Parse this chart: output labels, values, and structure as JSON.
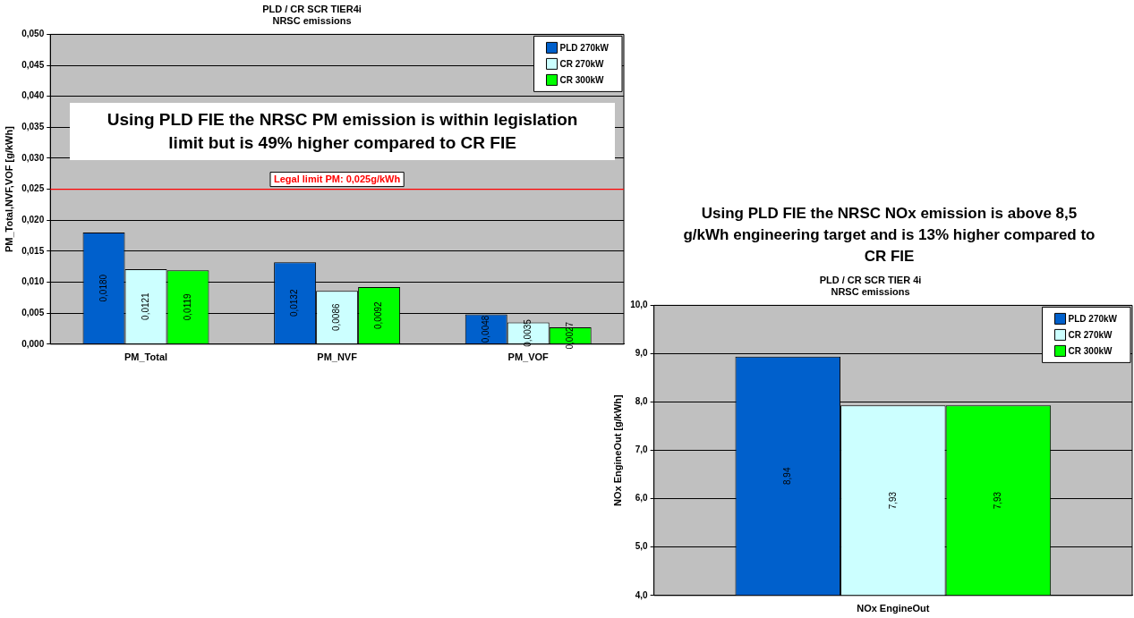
{
  "chart_data": [
    {
      "type": "bar",
      "title": "PLD / CR SCR TIER4i\nNRSC emissions",
      "ylabel": "PM_Total,NVF,VOF [g/kWh]",
      "categories": [
        "PM_Total",
        "PM_NVF",
        "PM_VOF"
      ],
      "series": [
        {
          "name": "PLD 270kW",
          "color": "#0060cc",
          "values": [
            0.018,
            0.0132,
            0.0048
          ],
          "value_labels": [
            "0,0180",
            "0,0132",
            "0,0048"
          ]
        },
        {
          "name": "CR 270kW",
          "color": "#ccffff",
          "values": [
            0.0121,
            0.0086,
            0.0035
          ],
          "value_labels": [
            "0,0121",
            "0,0086",
            "0,0035"
          ]
        },
        {
          "name": "CR 300kW",
          "color": "#00ff00",
          "values": [
            0.0119,
            0.0092,
            0.0027
          ],
          "value_labels": [
            "0,0119",
            "0,0092",
            "0,0027"
          ]
        }
      ],
      "ylim": [
        0,
        0.05
      ],
      "yticks": [
        {
          "value": 0,
          "label": "0,000"
        },
        {
          "value": 0.005,
          "label": "0,005"
        },
        {
          "value": 0.01,
          "label": "0,010"
        },
        {
          "value": 0.015,
          "label": "0,015"
        },
        {
          "value": 0.02,
          "label": "0,020"
        },
        {
          "value": 0.025,
          "label": "0,025"
        },
        {
          "value": 0.03,
          "label": "0,030"
        },
        {
          "value": 0.035,
          "label": "0,035"
        },
        {
          "value": 0.04,
          "label": "0,040"
        },
        {
          "value": 0.045,
          "label": "0,045"
        },
        {
          "value": 0.05,
          "label": "0,050"
        }
      ],
      "grid": "y",
      "legend": "top right",
      "ref_lines": [
        {
          "axis": "y",
          "value": 0.025,
          "label": "Legal limit PM: 0,025g/kWh",
          "color": "#ff0000"
        }
      ],
      "annotations": [
        "Using PLD FIE the NRSC PM emission is within legislation limit but is 49% higher compared to CR FIE"
      ]
    },
    {
      "type": "bar",
      "title": "PLD / CR SCR TIER 4i\nNRSC emissions",
      "ylabel": "NOx EngineOut [g/kWh]",
      "categories": [
        "NOx EngineOut"
      ],
      "series": [
        {
          "name": "PLD 270kW",
          "color": "#0060cc",
          "values": [
            8.94
          ],
          "value_labels": [
            "8,94"
          ]
        },
        {
          "name": "CR 270kW",
          "color": "#ccffff",
          "values": [
            7.93
          ],
          "value_labels": [
            "7,93"
          ]
        },
        {
          "name": "CR 300kW",
          "color": "#00ff00",
          "values": [
            7.93
          ],
          "value_labels": [
            "7,93"
          ]
        }
      ],
      "ylim": [
        4,
        10
      ],
      "yticks": [
        {
          "value": 4,
          "label": "4,0"
        },
        {
          "value": 5,
          "label": "5,0"
        },
        {
          "value": 6,
          "label": "6,0"
        },
        {
          "value": 7,
          "label": "7,0"
        },
        {
          "value": 8,
          "label": "8,0"
        },
        {
          "value": 9,
          "label": "9,0"
        },
        {
          "value": 10,
          "label": "10,0"
        }
      ],
      "grid": "y",
      "legend": "top right",
      "annotations": [
        "Using PLD FIE the NRSC NOx emission is above 8,5 g/kWh engineering target and is 13% higher compared to CR FIE"
      ]
    }
  ]
}
